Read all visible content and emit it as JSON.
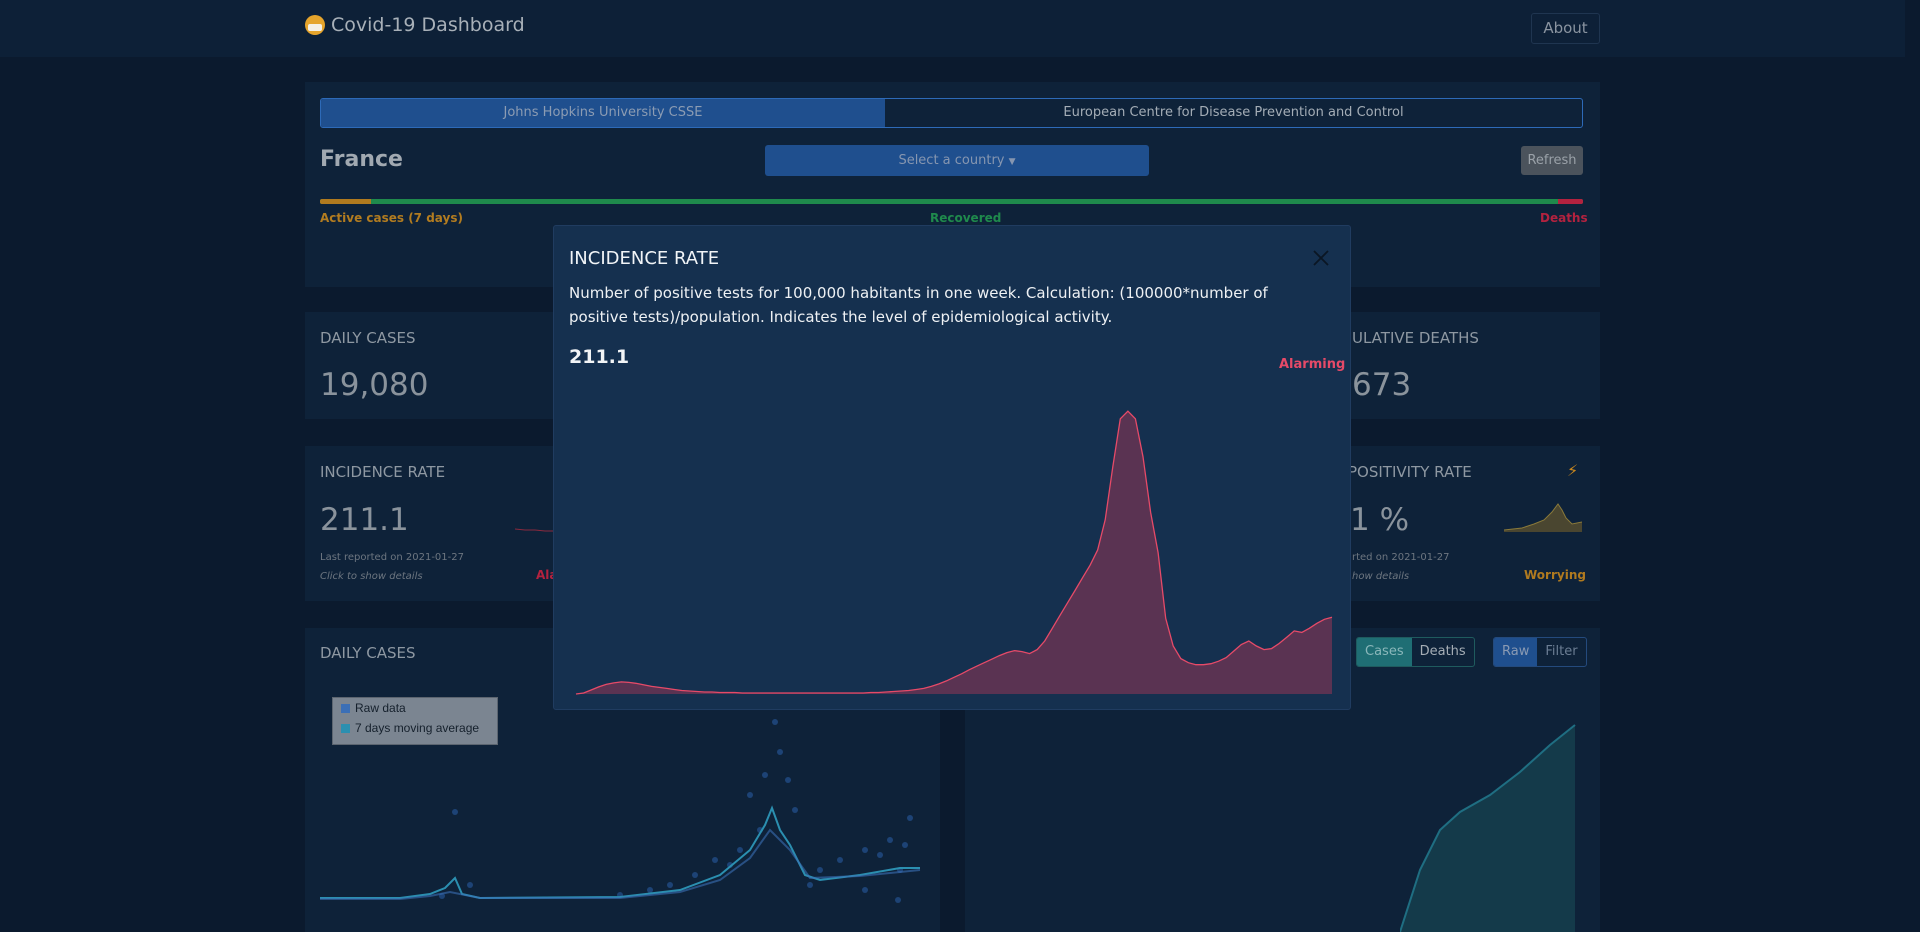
{
  "app": {
    "title": "Covid-19 Dashboard",
    "about": "About"
  },
  "sources": {
    "active": "Johns Hopkins University CSSE",
    "other": "European Centre for Disease Prevention and Control"
  },
  "country": {
    "name": "France",
    "select_label": "Select a country",
    "refresh": "Refresh"
  },
  "progress": {
    "active_label": "Active cases (7 days)",
    "recovered_label": "Recovered",
    "deaths_label": "Deaths",
    "colors": {
      "active": "#b07a1f",
      "recovered": "#1f8a4c",
      "deaths": "#b3223f"
    }
  },
  "cards": {
    "daily_cases": {
      "title": "DAILY CASES",
      "value": "19,080"
    },
    "cum_deaths": {
      "title": "ULATIVE DEATHS",
      "value": "673"
    },
    "incidence": {
      "title": "INCIDENCE RATE",
      "value": "211.1",
      "reported": "Last reported on 2021-01-27",
      "hint": "Click to show details",
      "status": "Ala"
    },
    "positivity": {
      "title": "POSITIVITY RATE",
      "value": "1 %",
      "reported": "rted on 2021-01-27",
      "hint": "how details",
      "status": "Worrying",
      "icon": "lightning-icon"
    }
  },
  "chart_panel": {
    "title": "DAILY CASES",
    "legend": [
      {
        "label": "Raw data",
        "color": "#3b6fb6"
      },
      {
        "label": "7 days moving average",
        "color": "#2b8fb0"
      }
    ],
    "toggle_type": [
      "Cases",
      "Deaths"
    ],
    "toggle_mode": [
      "Raw",
      "Filter"
    ]
  },
  "modal": {
    "title": "INCIDENCE RATE",
    "description": "Number of positive tests for 100,000 habitants in one week. Calculation: (100000*number of positive tests)/population. Indicates the level of epidemiological activity.",
    "value": "211.1",
    "status": "Alarming",
    "status_color": "#e64a68"
  },
  "chart_data": {
    "type": "area",
    "title": "",
    "xlabel": "",
    "ylabel": "",
    "series": [
      {
        "color": "#e64a68",
        "values": [
          0,
          2,
          8,
          14,
          19,
          22,
          24,
          23,
          21,
          18,
          15,
          13,
          11,
          9,
          7,
          6,
          5,
          4,
          4,
          3,
          3,
          3,
          2,
          2,
          2,
          2,
          2,
          2,
          2,
          2,
          2,
          2,
          2,
          2,
          2,
          2,
          2,
          2,
          2,
          3,
          3,
          4,
          5,
          6,
          7,
          9,
          11,
          15,
          20,
          26,
          33,
          40,
          48,
          55,
          62,
          69,
          76,
          82,
          86,
          84,
          80,
          88,
          105,
          130,
          155,
          180,
          205,
          230,
          255,
          285,
          345,
          450,
          545,
          560,
          545,
          470,
          360,
          280,
          150,
          95,
          70,
          62,
          58,
          58,
          60,
          65,
          72,
          85,
          98,
          105,
          95,
          88,
          90,
          100,
          112,
          125,
          122,
          130,
          140,
          148,
          152
        ],
        "ylim": [
          0,
          600
        ]
      }
    ]
  }
}
